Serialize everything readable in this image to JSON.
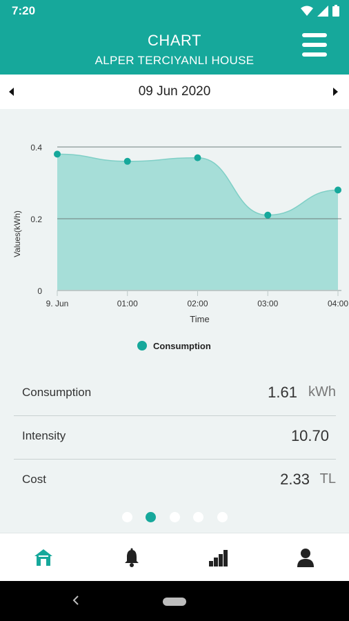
{
  "status_bar": {
    "time": "7:20"
  },
  "app_bar": {
    "title": "CHART",
    "subtitle": "ALPER TERCIYANLI HOUSE"
  },
  "date_bar": {
    "date": "09 Jun 2020"
  },
  "chart_data": {
    "type": "area",
    "x": [
      "9. Jun",
      "01:00",
      "02:00",
      "03:00",
      "04:00"
    ],
    "series": [
      {
        "name": "Consumption",
        "values": [
          0.38,
          0.36,
          0.37,
          0.21,
          0.28
        ]
      }
    ],
    "xlabel": "Time",
    "ylabel": "Values(kWh)",
    "y_ticks": [
      "0",
      "0.2",
      "0.4"
    ],
    "ylim": [
      0,
      0.4
    ],
    "legend": "bottom-center",
    "color": "#16a89b"
  },
  "metrics": [
    {
      "label": "Consumption",
      "value": "1.61",
      "unit": "kWh"
    },
    {
      "label": "Intensity",
      "value": "10.70",
      "unit": ""
    },
    {
      "label": "Cost",
      "value": "2.33",
      "unit": "TL"
    }
  ],
  "pager": {
    "count": 5,
    "active": 1
  },
  "bottom_nav": [
    {
      "icon": "home-icon",
      "active": true
    },
    {
      "icon": "bell-icon",
      "active": false
    },
    {
      "icon": "bar-chart-icon",
      "active": false
    },
    {
      "icon": "user-icon",
      "active": false
    }
  ],
  "colors": {
    "accent": "#16a89b",
    "background": "#eef3f3"
  }
}
